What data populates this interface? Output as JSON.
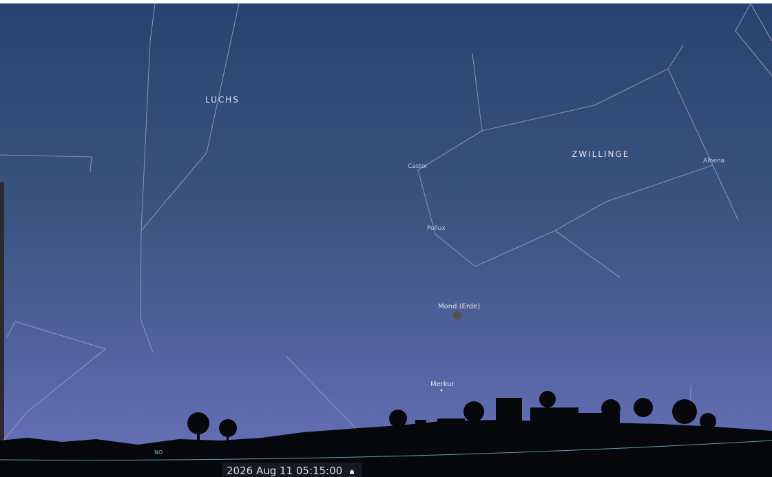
{
  "sky_labels": {
    "constellations": [
      "LUCHS",
      "ZWILLINGE"
    ],
    "stars": [
      "Castor",
      "Pollux",
      "Alhena"
    ],
    "planets": [
      "Mond (Erde)",
      "Merkur"
    ],
    "compass": "NO"
  },
  "time_bar": {
    "datetime": "2026 Aug 11 05:15:00"
  }
}
